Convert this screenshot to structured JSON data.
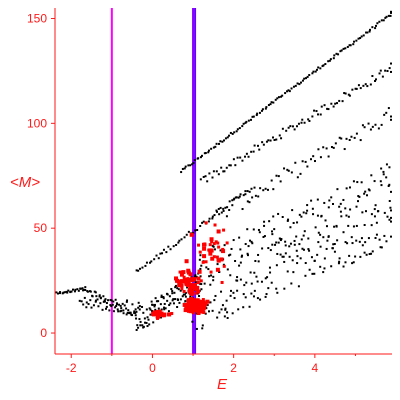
{
  "chart_data": {
    "type": "scatter",
    "title": "",
    "xlabel": "E",
    "ylabel": "<M>",
    "xlim": [
      -2.4,
      5.9
    ],
    "ylim": [
      -10,
      155
    ],
    "x_ticks": [
      -2,
      0,
      2,
      4
    ],
    "y_ticks": [
      0,
      50,
      100,
      150
    ],
    "grid": false,
    "legend": "none",
    "vertical_lines": [
      {
        "x": -1.0,
        "color": "#ff00ff"
      },
      {
        "x": 1.0,
        "color": "#8800ff"
      },
      {
        "x": 1.05,
        "color": "#6a00ff"
      }
    ],
    "series": [
      {
        "color": "#000000",
        "marker": "dot",
        "groups": [
          {
            "x_start": 0.7,
            "x_end": 5.95,
            "y_start": 77,
            "y_end": 153,
            "n": 120,
            "jitter": 0.6
          },
          {
            "x_start": 1.2,
            "x_end": 5.95,
            "y_start": 72,
            "y_end": 127,
            "n": 90,
            "jitter": 2.0
          },
          {
            "x_start": -0.4,
            "x_end": 2.5,
            "y_start": 29,
            "y_end": 70,
            "n": 55,
            "jitter": 1.2
          },
          {
            "x_start": 1.5,
            "x_end": 5.95,
            "y_start": 55,
            "y_end": 105,
            "n": 70,
            "jitter": 4.0
          },
          {
            "x_start": 1.0,
            "x_end": 5.95,
            "y_start": 20,
            "y_end": 62,
            "n": 330,
            "jitter": 20.0
          },
          {
            "x_start": -0.4,
            "x_end": 1.2,
            "y_start": 6,
            "y_end": 25,
            "n": 110,
            "jitter": 6.0
          },
          {
            "x_start": -2.35,
            "x_end": -1.7,
            "y_start": 19,
            "y_end": 21,
            "n": 22,
            "jitter": 0.5
          },
          {
            "x_start": -1.7,
            "x_end": -0.4,
            "y_start": 21,
            "y_end": 8,
            "n": 45,
            "jitter": 1.5
          },
          {
            "x_start": -1.8,
            "x_end": -0.3,
            "y_start": 15,
            "y_end": 12,
            "n": 40,
            "jitter": 3.0
          }
        ]
      },
      {
        "color": "#ff0000",
        "marker": "square",
        "groups": [
          {
            "x_center": 1.05,
            "y_center": 13,
            "x_spread": 0.45,
            "y_spread": 5,
            "n": 220
          },
          {
            "x_center": 0.9,
            "y_center": 24,
            "x_spread": 0.55,
            "y_spread": 9,
            "n": 70
          },
          {
            "x_center": 1.4,
            "y_center": 40,
            "x_spread": 0.8,
            "y_spread": 18,
            "n": 40
          },
          {
            "x_center": 0.2,
            "y_center": 9,
            "x_spread": 0.5,
            "y_spread": 3,
            "n": 25
          }
        ]
      }
    ]
  }
}
